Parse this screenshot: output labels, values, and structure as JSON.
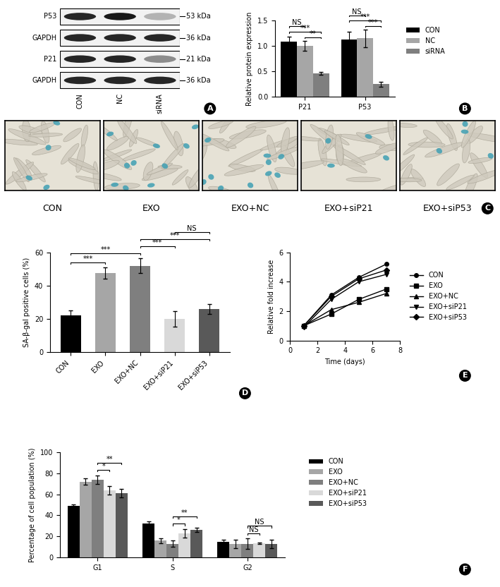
{
  "chart_data": [
    {
      "type": "western_blot",
      "annotation": "A",
      "lanes": [
        "CON",
        "NC",
        "siRNA"
      ],
      "rows": [
        {
          "label": "P53",
          "size": "53 kDa",
          "intensity": [
            0.85,
            0.9,
            0.3
          ]
        },
        {
          "label": "GAPDH",
          "size": "36 kDa",
          "intensity": [
            0.85,
            0.85,
            0.85
          ]
        },
        {
          "label": "P21",
          "size": "21 kDa",
          "intensity": [
            0.85,
            0.85,
            0.45
          ]
        },
        {
          "label": "GAPDH",
          "size": "36 kDa",
          "intensity": [
            0.85,
            0.85,
            0.85
          ]
        }
      ]
    },
    {
      "type": "bar",
      "annotation": "B",
      "y_label": "Relative protein expression",
      "categories": [
        "P21",
        "P53"
      ],
      "series": [
        {
          "name": "CON",
          "color": "#000000",
          "values": [
            1.08,
            1.13
          ],
          "errors": [
            0.1,
            0.15
          ]
        },
        {
          "name": "NC",
          "color": "#a6a6a6",
          "values": [
            1.0,
            1.15
          ],
          "errors": [
            0.1,
            0.17
          ]
        },
        {
          "name": "siRNA",
          "color": "#7f7f7f",
          "values": [
            0.46,
            0.25
          ],
          "errors": [
            0.03,
            0.05
          ]
        }
      ],
      "ylim": [
        0,
        1.5
      ],
      "yticks": [
        {
          "value": 0,
          "label": "0.0"
        },
        {
          "value": 0.5,
          "label": "0.5"
        },
        {
          "value": 1.0,
          "label": "1.0"
        },
        {
          "value": 1.5,
          "label": "1.5"
        }
      ],
      "legend": "upper left",
      "comparisons": [
        {
          "category": "P21",
          "a": "NC",
          "b": "siRNA",
          "label": "**"
        },
        {
          "category": "P21",
          "a": "CON",
          "b": "siRNA",
          "label": "***"
        },
        {
          "category": "P21",
          "a": "CON",
          "b": "NC",
          "label": "NS"
        },
        {
          "category": "P53",
          "a": "NC",
          "b": "siRNA",
          "label": "***"
        },
        {
          "category": "P53",
          "a": "CON",
          "b": "siRNA",
          "label": "***"
        },
        {
          "category": "P53",
          "a": "CON",
          "b": "NC",
          "label": "NS"
        }
      ]
    },
    {
      "type": "image",
      "annotation": "C",
      "categories": [
        "CON",
        "EXO",
        "EXO+NC",
        "EXO+siP21",
        "EXO+siP53"
      ]
    },
    {
      "type": "bar",
      "annotation": "D",
      "y_label": "SA-β-gal positive cells (%)",
      "categories": [
        "CON",
        "EXO",
        "EXO+NC",
        "EXO+siP21",
        "EXO+siP53"
      ],
      "values": [
        22,
        47.5,
        52,
        20,
        26
      ],
      "errors": [
        3,
        3.5,
        4.5,
        4.5,
        3
      ],
      "colors": [
        "#000000",
        "#a6a6a6",
        "#7f7f7f",
        "#d9d9d9",
        "#595959"
      ],
      "ylim": [
        0,
        60
      ],
      "yticks": [
        0,
        20,
        40,
        60
      ],
      "comparisons": [
        {
          "a": "CON",
          "b": "EXO",
          "label": "***"
        },
        {
          "a": "CON",
          "b": "EXO+NC",
          "label": "***"
        },
        {
          "a": "EXO+NC",
          "b": "EXO+siP21",
          "label": "***"
        },
        {
          "a": "EXO+NC",
          "b": "EXO+siP53",
          "label": "***"
        },
        {
          "a": "EXO+siP21",
          "b": "EXO+siP53",
          "label": "NS"
        }
      ]
    },
    {
      "type": "line",
      "annotation": "E",
      "x_label": "Time (days)",
      "y_label": "Relative fold increase",
      "x": [
        1,
        3,
        5,
        7
      ],
      "series": [
        {
          "name": "CON",
          "color": "#000000",
          "marker": "circle",
          "values": [
            1.0,
            3.1,
            4.3,
            5.2
          ]
        },
        {
          "name": "EXO",
          "color": "#000000",
          "marker": "square",
          "values": [
            1.0,
            1.8,
            2.8,
            3.5
          ]
        },
        {
          "name": "EXO+NC",
          "color": "#000000",
          "marker": "triangle_up",
          "values": [
            1.0,
            2.1,
            2.6,
            3.2
          ]
        },
        {
          "name": "EXO+siP21",
          "color": "#000000",
          "marker": "triangle_down",
          "values": [
            0.9,
            2.8,
            4.0,
            4.5
          ]
        },
        {
          "name": "EXO+siP53",
          "color": "#000000",
          "marker": "diamond",
          "values": [
            1.0,
            3.0,
            4.2,
            4.8
          ]
        }
      ],
      "xlim": [
        0,
        8
      ],
      "xticks": [
        0,
        2,
        4,
        6,
        8
      ],
      "ylim": [
        0,
        6
      ],
      "yticks": [
        0,
        2,
        4,
        6
      ],
      "legend": "center left"
    },
    {
      "type": "bar",
      "annotation": "F",
      "y_label": "Percentage of cell population (%)",
      "categories": [
        "G1",
        "S",
        "G2"
      ],
      "series": [
        {
          "name": "CON",
          "color": "#000000",
          "values": [
            49,
            32,
            15
          ],
          "errors": [
            1.5,
            2.5,
            2
          ]
        },
        {
          "name": "EXO",
          "color": "#a6a6a6",
          "values": [
            72,
            16,
            13
          ],
          "errors": [
            3,
            2.5,
            4
          ]
        },
        {
          "name": "EXO+NC",
          "color": "#7f7f7f",
          "values": [
            74,
            13,
            13
          ],
          "errors": [
            4,
            3,
            5
          ]
        },
        {
          "name": "EXO+siP21",
          "color": "#d9d9d9",
          "values": [
            64,
            23,
            13.5
          ],
          "errors": [
            4,
            4,
            0.5
          ]
        },
        {
          "name": "EXO+siP53",
          "color": "#595959",
          "values": [
            61,
            26,
            13
          ],
          "errors": [
            4,
            2,
            4
          ]
        }
      ],
      "ylim": [
        0,
        100
      ],
      "yticks": [
        0,
        20,
        40,
        60,
        80,
        100
      ],
      "legend": "upper left",
      "comparisons": [
        {
          "category": "G1",
          "a": "EXO+NC",
          "b": "EXO+siP21",
          "label": "*"
        },
        {
          "category": "G1",
          "a": "EXO+NC",
          "b": "EXO+siP53",
          "label": "**"
        },
        {
          "category": "S",
          "a": "EXO+NC",
          "b": "EXO+siP21",
          "label": "*"
        },
        {
          "category": "S",
          "a": "EXO+NC",
          "b": "EXO+siP53",
          "label": "**"
        },
        {
          "category": "G2",
          "a": "EXO+NC",
          "b": "EXO+siP21",
          "label": "NS"
        },
        {
          "category": "G2",
          "a": "EXO+NC",
          "b": "EXO+siP53",
          "label": "NS"
        }
      ]
    }
  ]
}
